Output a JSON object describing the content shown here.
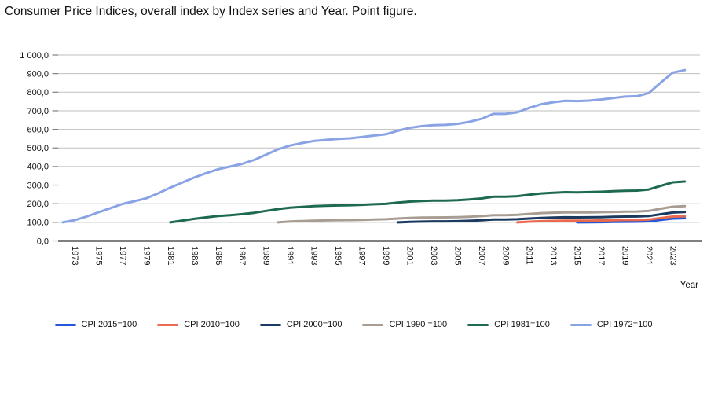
{
  "title": "Consumer Price Indices, overall index by Index series and Year. Point figure.",
  "chart_data": {
    "type": "line",
    "title": "Consumer Price Indices, overall index by Index series and Year. Point figure.",
    "xlabel": "Year",
    "ylabel": "",
    "ylim": [
      0,
      1000
    ],
    "y_tick_step": 100,
    "y_tick_labels": [
      "0,0",
      "100,0",
      "200,0",
      "300,0",
      "400,0",
      "500,0",
      "600,0",
      "700,0",
      "800,0",
      "900,0",
      "1 000,0"
    ],
    "x_tick_labels": [
      "1973",
      "1975",
      "1977",
      "1979",
      "1981",
      "1983",
      "1985",
      "1987",
      "1989",
      "1991",
      "1993",
      "1995",
      "1997",
      "1999",
      "2001",
      "2003",
      "2005",
      "2007",
      "2009",
      "2011",
      "2013",
      "2015",
      "2017",
      "2019",
      "2021",
      "2023"
    ],
    "x_range": [
      1972,
      2024
    ],
    "grid": "horizontal",
    "gridline_color": "#bfbfbf",
    "axis_color": "#000000",
    "legend_position": "bottom",
    "number_format": "decimal comma, space thousands separator",
    "series": [
      {
        "name": "CPI 2015=100",
        "color": "#2456d6",
        "start_year": 2015,
        "values": [
          100.0,
          100.4,
          101.1,
          102.2,
          103.2,
          103.5,
          105.8,
          113.3,
          120.4,
          122.2
        ]
      },
      {
        "name": "CPI 2010=100",
        "color": "#ea6a50",
        "start_year": 2010,
        "values": [
          100.0,
          103.4,
          106.3,
          107.9,
          109.0,
          108.8,
          109.2,
          110.0,
          111.2,
          112.3,
          112.6,
          115.1,
          123.3,
          131.0,
          132.9
        ]
      },
      {
        "name": "CPI 2000=100",
        "color": "#1b3a60",
        "start_year": 2000,
        "values": [
          100.0,
          102.6,
          104.2,
          105.1,
          105.3,
          106.2,
          108.1,
          110.8,
          115.3,
          115.3,
          116.7,
          120.7,
          124.1,
          125.9,
          127.2,
          126.9,
          127.4,
          128.3,
          129.7,
          131.0,
          131.4,
          134.2,
          143.9,
          152.8,
          155.1
        ]
      },
      {
        "name": "CPI 1990 =100",
        "color": "#a79d93",
        "start_year": 1990,
        "values": [
          100.0,
          104.3,
          106.9,
          109.2,
          110.4,
          111.5,
          112.2,
          113.5,
          115.1,
          116.5,
          120.4,
          123.5,
          125.5,
          126.6,
          126.8,
          128.0,
          130.2,
          133.5,
          138.9,
          138.9,
          140.6,
          145.4,
          149.5,
          151.6,
          153.2,
          152.9,
          153.4,
          154.6,
          156.2,
          157.8,
          158.3,
          161.7,
          173.3,
          184.1,
          186.8
        ]
      },
      {
        "name": "CPI 1981=100",
        "color": "#1d6a50",
        "start_year": 1981,
        "values": [
          100.0,
          109.4,
          118.7,
          127.0,
          134.5,
          138.9,
          144.0,
          151.4,
          161.4,
          171.2,
          178.3,
          182.9,
          186.8,
          188.8,
          190.7,
          191.8,
          194.1,
          196.9,
          199.2,
          206.0,
          211.3,
          214.6,
          216.5,
          216.9,
          218.9,
          222.7,
          228.3,
          237.6,
          237.6,
          240.4,
          248.6,
          255.6,
          259.3,
          262.0,
          261.5,
          262.4,
          264.4,
          267.2,
          269.9,
          270.7,
          276.6,
          296.3,
          314.8,
          319.4
        ]
      },
      {
        "name": "CPI 1972=100",
        "color": "#8aa3e4",
        "start_year": 1972,
        "values": [
          100.0,
          111.7,
          130.9,
          154.4,
          176.5,
          198.6,
          213.6,
          229.5,
          256.1,
          286.8,
          313.8,
          340.6,
          364.4,
          385.8,
          399.8,
          414.3,
          435.5,
          464.1,
          492.4,
          512.9,
          526.3,
          537.4,
          543.2,
          548.6,
          551.9,
          558.5,
          566.5,
          573.2,
          592.6,
          607.9,
          617.5,
          623.0,
          624.2,
          629.7,
          640.7,
          656.7,
          683.4,
          683.4,
          691.6,
          715.3,
          735.3,
          746.0,
          753.8,
          752.2,
          754.9,
          760.5,
          768.7,
          776.4,
          778.6,
          795.7,
          852.5,
          905.6,
          919.0
        ]
      }
    ]
  }
}
